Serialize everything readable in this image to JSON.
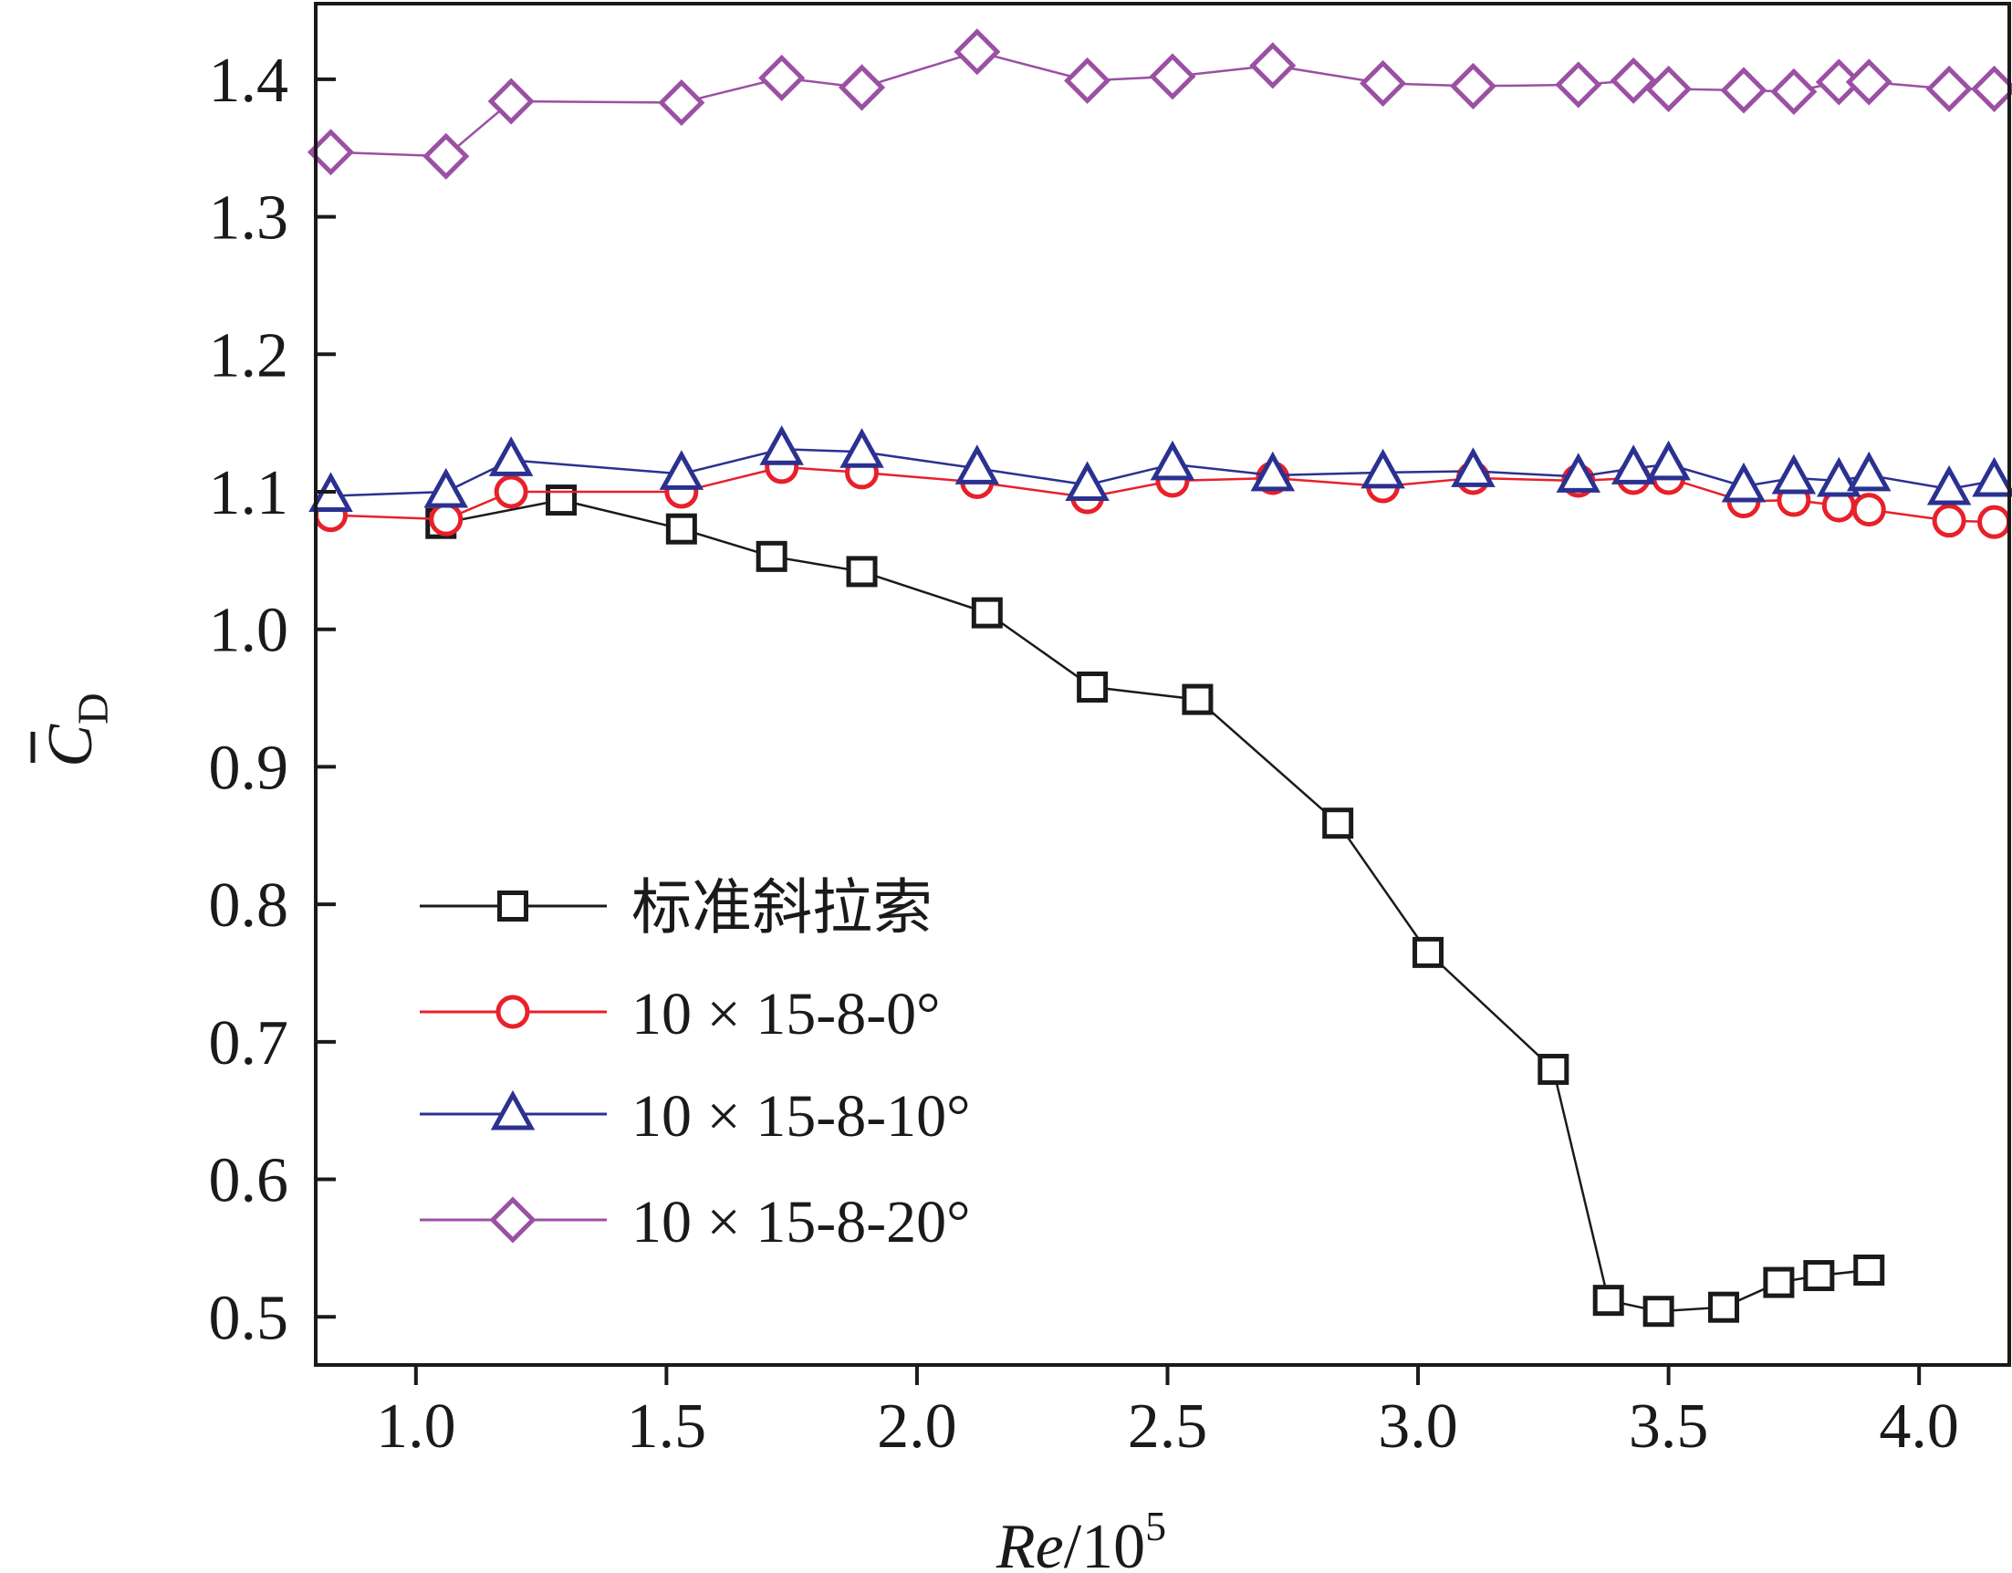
{
  "chart_data": {
    "type": "line",
    "xlabel": {
      "main": "Re",
      "sep": "/10",
      "sup": "5"
    },
    "ylabel": {
      "main": "C",
      "sub": "D"
    },
    "xlim": [
      0.8,
      4.18
    ],
    "ylim": [
      0.465,
      1.455
    ],
    "xticks": [
      1.0,
      1.5,
      2.0,
      2.5,
      3.0,
      3.5,
      4.0
    ],
    "xtick_labels": [
      "1.0",
      "1.5",
      "2.0",
      "2.5",
      "3.0",
      "3.5",
      "4.0"
    ],
    "yticks": [
      0.5,
      0.6,
      0.7,
      0.8,
      0.9,
      1.0,
      1.1,
      1.2,
      1.3,
      1.4
    ],
    "ytick_labels": [
      "0.5",
      "0.6",
      "0.7",
      "0.8",
      "0.9",
      "1.0",
      "1.1",
      "1.2",
      "1.3",
      "1.4"
    ],
    "grid": false,
    "legend_position": "lower-left",
    "series": [
      {
        "name": "标准斜拉索",
        "marker": "square",
        "color": "#1a1a1a",
        "x": [
          1.05,
          1.29,
          1.53,
          1.71,
          1.89,
          2.14,
          2.35,
          2.56,
          2.84,
          3.02,
          3.27,
          3.38,
          3.48,
          3.61,
          3.72,
          3.8,
          3.9
        ],
        "y": [
          1.077,
          1.094,
          1.073,
          1.053,
          1.042,
          1.012,
          0.958,
          0.949,
          0.859,
          0.765,
          0.68,
          0.512,
          0.504,
          0.507,
          0.525,
          0.53,
          0.534
        ]
      },
      {
        "name": "10 × 15-8-0°",
        "marker": "circle",
        "color": "#e8202a",
        "x": [
          0.83,
          1.06,
          1.19,
          1.53,
          1.73,
          1.89,
          2.12,
          2.34,
          2.51,
          2.71,
          2.93,
          3.11,
          3.32,
          3.43,
          3.5,
          3.65,
          3.75,
          3.84,
          3.9,
          4.06,
          4.15
        ],
        "y": [
          1.083,
          1.08,
          1.1,
          1.1,
          1.118,
          1.114,
          1.107,
          1.096,
          1.108,
          1.11,
          1.104,
          1.11,
          1.108,
          1.11,
          1.11,
          1.093,
          1.094,
          1.09,
          1.087,
          1.079,
          1.078
        ]
      },
      {
        "name": "10 × 15-8-10°",
        "marker": "triangle",
        "color": "#2b3190",
        "x": [
          0.83,
          1.06,
          1.19,
          1.53,
          1.73,
          1.89,
          2.12,
          2.34,
          2.51,
          2.71,
          2.93,
          3.11,
          3.32,
          3.43,
          3.5,
          3.65,
          3.75,
          3.84,
          3.9,
          4.06,
          4.15
        ],
        "y": [
          1.097,
          1.1,
          1.123,
          1.113,
          1.131,
          1.129,
          1.117,
          1.105,
          1.12,
          1.112,
          1.114,
          1.115,
          1.111,
          1.117,
          1.12,
          1.104,
          1.11,
          1.108,
          1.112,
          1.102,
          1.108
        ]
      },
      {
        "name": "10 × 15-8-20°",
        "marker": "diamond",
        "color": "#9b50a3",
        "x": [
          0.83,
          1.06,
          1.19,
          1.53,
          1.73,
          1.89,
          2.12,
          2.34,
          2.51,
          2.71,
          2.93,
          3.11,
          3.32,
          3.43,
          3.5,
          3.65,
          3.75,
          3.84,
          3.9,
          4.06,
          4.15
        ],
        "y": [
          1.347,
          1.344,
          1.384,
          1.383,
          1.401,
          1.394,
          1.42,
          1.399,
          1.402,
          1.41,
          1.397,
          1.395,
          1.396,
          1.399,
          1.393,
          1.392,
          1.391,
          1.398,
          1.398,
          1.393,
          1.393
        ]
      }
    ]
  }
}
